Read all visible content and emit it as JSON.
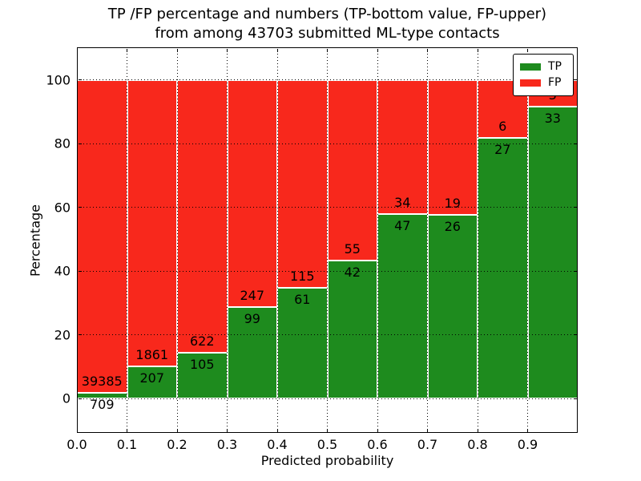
{
  "title": {
    "line1": "TP /FP percentage and numbers (TP-bottom value, FP-upper)",
    "line2": "from among 43703 submitted ML-type contacts"
  },
  "legend": {
    "items": [
      {
        "label": "TP",
        "color": "#1e8b1e"
      },
      {
        "label": "FP",
        "color": "#f8281c"
      }
    ]
  },
  "chart_data": {
    "type": "bar",
    "stacked": true,
    "normalized": "each bar scaled to 100%, count labels shown (TP-bottom value, FP-upper)",
    "total_contacts": 43703,
    "title": "TP /FP percentage and numbers (TP-bottom value, FP-upper) from among 43703 submitted ML-type contacts",
    "xlabel": "Predicted probability",
    "ylabel": "Percentage",
    "bin_edges": [
      0.0,
      0.1,
      0.2,
      0.3,
      0.4,
      0.5,
      0.6,
      0.7,
      0.8,
      0.9,
      1.0
    ],
    "x_tick_labels": [
      "0.0",
      "0.1",
      "0.2",
      "0.3",
      "0.4",
      "0.5",
      "0.6",
      "0.7",
      "0.8",
      "0.9"
    ],
    "y_ticks": [
      0,
      20,
      40,
      60,
      80,
      100
    ],
    "xlim": [
      0,
      1
    ],
    "ylim": [
      -10.8,
      110.3
    ],
    "grid": true,
    "legend_position": "upper right",
    "series": [
      {
        "name": "TP",
        "color": "#1e8b1e",
        "counts": [
          709,
          207,
          105,
          99,
          61,
          42,
          47,
          26,
          27,
          33
        ]
      },
      {
        "name": "FP",
        "color": "#f8281c",
        "counts": [
          39385,
          1861,
          622,
          247,
          115,
          55,
          34,
          19,
          6,
          3
        ]
      }
    ],
    "tp_percent_by_bin": [
      1.8,
      10.0,
      14.4,
      28.6,
      34.7,
      43.3,
      58.0,
      57.8,
      81.8,
      91.7
    ]
  }
}
